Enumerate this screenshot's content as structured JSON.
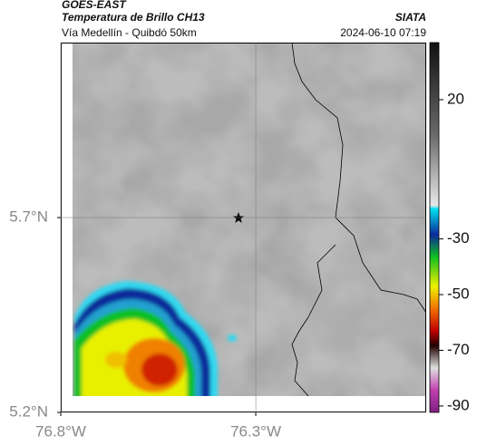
{
  "header": {
    "title": "GOES-EAST",
    "subtitle": "Temperatura de Brillo CH13",
    "source": "SIATA",
    "region": "Vía Medellín - Quibdó 50km",
    "datetime": "2024-06-10 07:19"
  },
  "map": {
    "xlim": [
      -76.8,
      -75.863
    ],
    "ylim": [
      5.2,
      6.149
    ],
    "xticks": [
      {
        "value": -76.8,
        "label": "76.8°W"
      },
      {
        "value": -76.3,
        "label": "76.3°W"
      }
    ],
    "yticks": [
      {
        "value": 5.2,
        "label": "5.2°N"
      },
      {
        "value": 5.7,
        "label": "5.7°N"
      }
    ],
    "grid": true
  },
  "colorbar": {
    "lim": [
      -92.3,
      40.5
    ],
    "ticks": [
      20,
      -30,
      -50,
      -70,
      -90
    ]
  }
}
